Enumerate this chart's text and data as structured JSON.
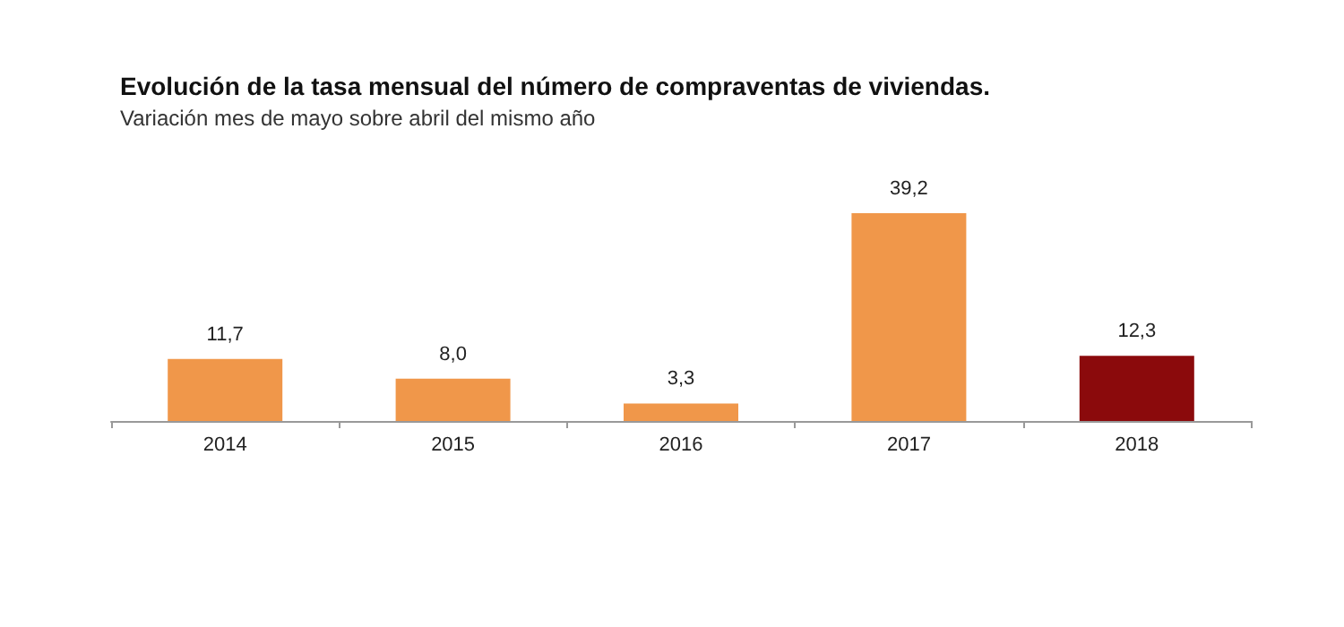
{
  "chart_data": {
    "type": "bar",
    "title": "Evolución de la tasa mensual del número de compraventas de viviendas.",
    "subtitle": "Variación mes de mayo sobre abril del mismo año",
    "categories": [
      "2014",
      "2015",
      "2016",
      "2017",
      "2018"
    ],
    "values": [
      11.7,
      8.0,
      3.3,
      39.2,
      12.3
    ],
    "colors": [
      "#f0974a",
      "#f0974a",
      "#f0974a",
      "#f0974a",
      "#8b0a0c"
    ],
    "value_labels": [
      "11,7",
      "8,0",
      "3,3",
      "39,2",
      "12,3"
    ]
  }
}
